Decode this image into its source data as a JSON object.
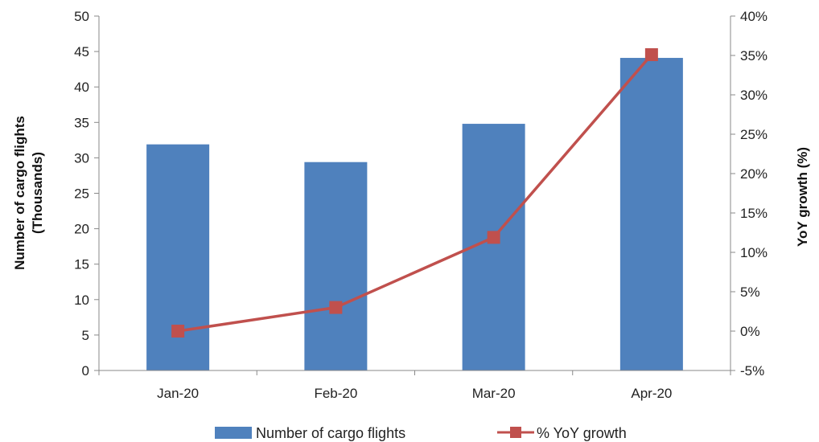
{
  "chart_data": {
    "type": "bar",
    "categories": [
      "Jan-20",
      "Feb-20",
      "Mar-20",
      "Apr-20"
    ],
    "series": [
      {
        "name": "Number of cargo flights",
        "type": "bar",
        "axis": "left",
        "values": [
          31.9,
          29.4,
          34.8,
          44.1
        ],
        "color": "#4F81BD"
      },
      {
        "name": "% YoY growth",
        "type": "line",
        "axis": "right",
        "values": [
          0.0,
          3.0,
          11.9,
          35.1
        ],
        "color": "#C0504D"
      }
    ],
    "ylabel": "Number of cargo flights",
    "ylabel_sub": "(Thousands)",
    "ylim": [
      0,
      50
    ],
    "yticks": [
      "0",
      "5",
      "10",
      "15",
      "20",
      "25",
      "30",
      "35",
      "40",
      "45",
      "50"
    ],
    "y2label": "YoY growth (%)",
    "y2lim": [
      -5,
      40
    ],
    "y2ticks": [
      "-5%",
      "0%",
      "5%",
      "10%",
      "15%",
      "20%",
      "25%",
      "30%",
      "35%",
      "40%"
    ],
    "grid": false,
    "legend_position": "bottom"
  }
}
